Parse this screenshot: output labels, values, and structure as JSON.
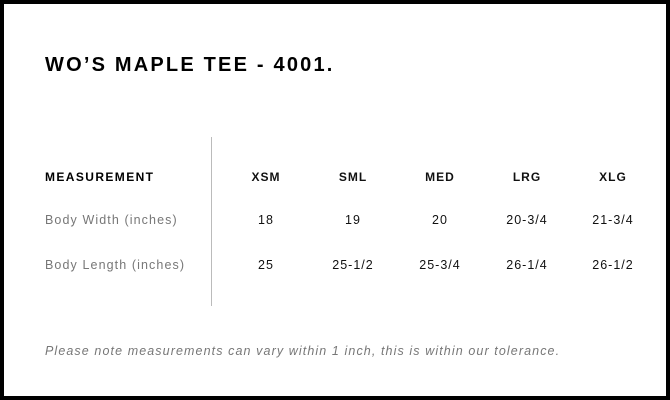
{
  "title": "WO’S MAPLE TEE - 4001.",
  "table": {
    "header_label": "MEASUREMENT",
    "sizes": [
      "XSM",
      "SML",
      "MED",
      "LRG",
      "XLG"
    ],
    "rows": [
      {
        "label": "Body Width (inches)",
        "values": [
          "18",
          "19",
          "20",
          "20-3/4",
          "21-3/4"
        ]
      },
      {
        "label": "Body Length (inches)",
        "values": [
          "25",
          "25-1/2",
          "25-3/4",
          "26-1/4",
          "26-1/2"
        ]
      }
    ]
  },
  "note": "Please note measurements can vary within 1 inch, this is within our tolerance."
}
